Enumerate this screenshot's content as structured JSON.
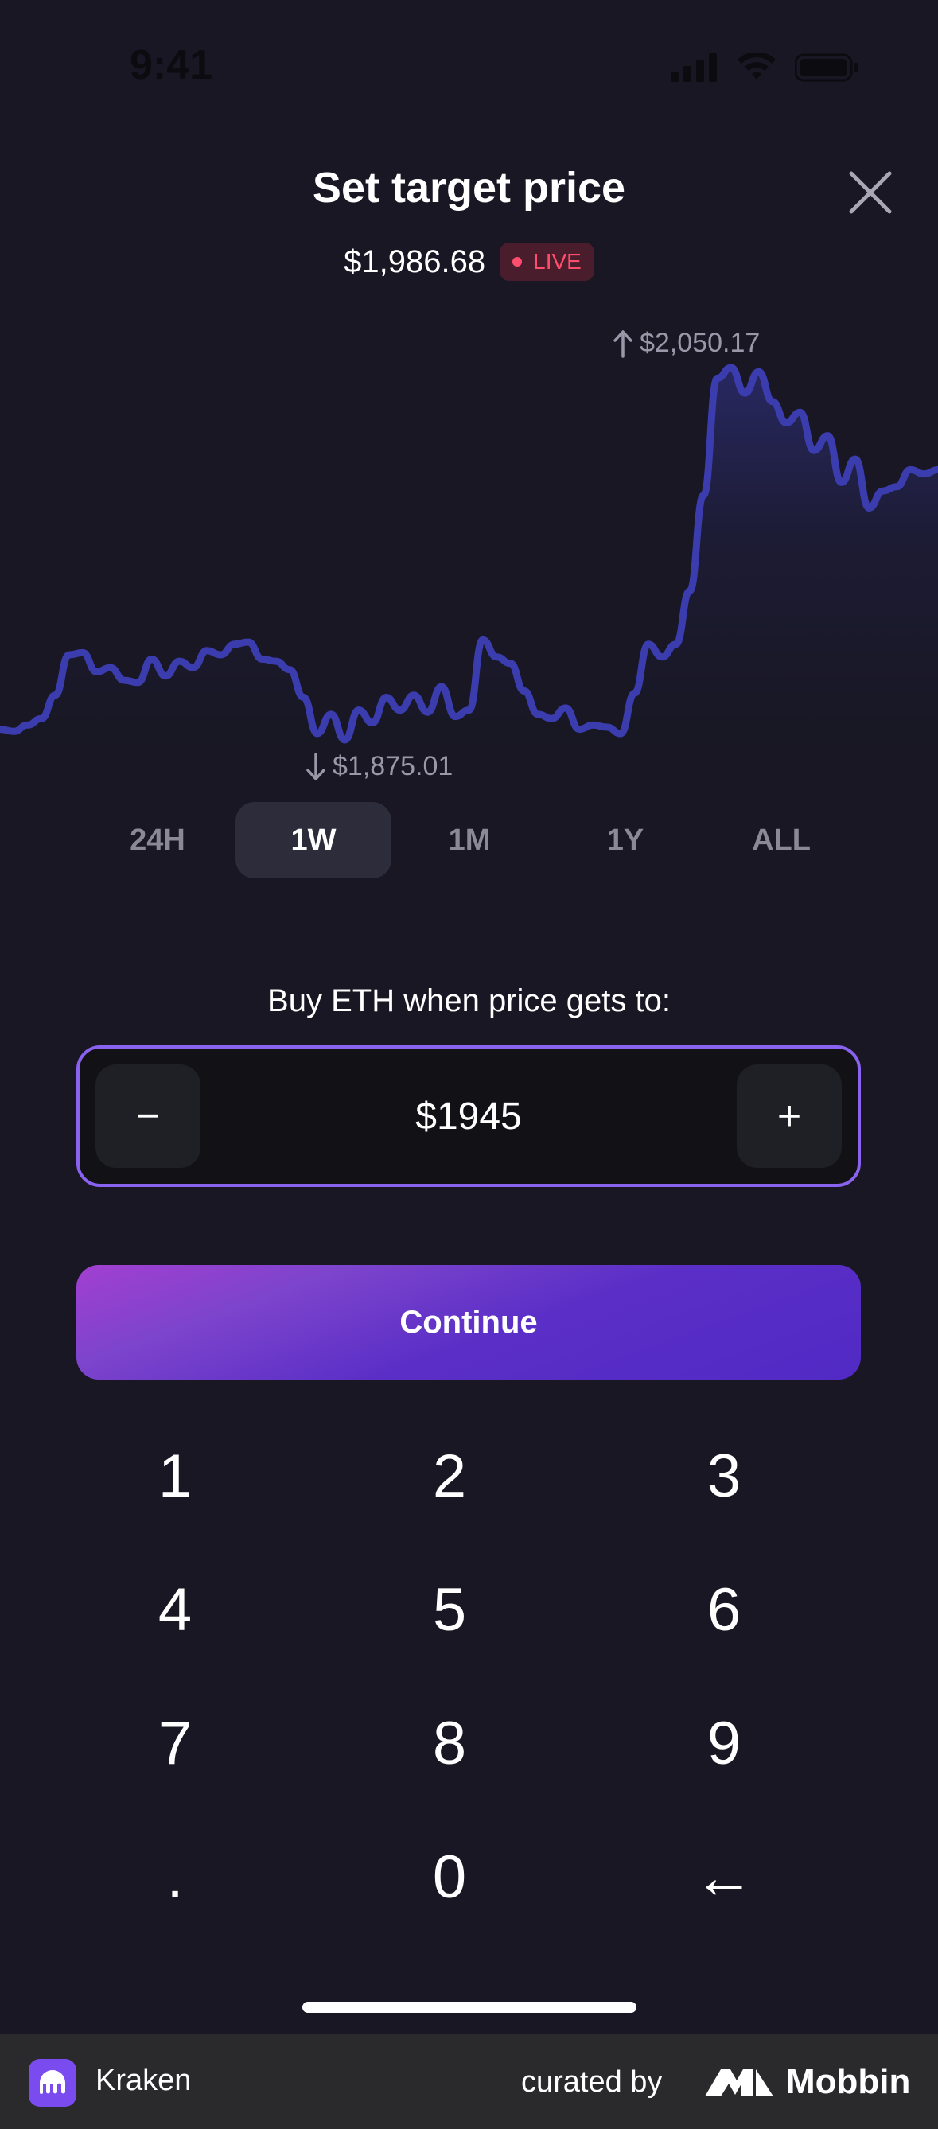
{
  "status_bar": {
    "time": "9:41"
  },
  "header": {
    "title": "Set target price",
    "close_icon": "close-icon"
  },
  "price": {
    "current": "$1,986.68",
    "live_label": "LIVE"
  },
  "chart_data": {
    "type": "line",
    "high_label": "$2,050.17",
    "low_label": "$1,875.01",
    "series": [
      {
        "values": [
          1880,
          1879,
          1882,
          1885,
          1896,
          1915,
          1916,
          1907,
          1909,
          1903,
          1902,
          1913,
          1905,
          1912,
          1909,
          1917,
          1915,
          1920,
          1921,
          1913,
          1912,
          1908,
          1895,
          1878,
          1887,
          1875,
          1889,
          1883,
          1895,
          1889,
          1896,
          1888,
          1900,
          1886,
          1889,
          1922,
          1914,
          1911,
          1898,
          1887,
          1885,
          1890,
          1880,
          1882,
          1881,
          1878,
          1897,
          1920,
          1914,
          1920,
          1945,
          1990,
          2045,
          2050,
          2038,
          2048,
          2034,
          2024,
          2029,
          2011,
          2018,
          1996,
          2007,
          1984,
          1992,
          1994,
          2002,
          2000,
          2002
        ]
      }
    ],
    "line_color": "#3b3cae",
    "ranges": [
      "24H",
      "1W",
      "1M",
      "1Y",
      "ALL"
    ],
    "active_range": "1W"
  },
  "order": {
    "label": "Buy ETH when price gets to:",
    "value": "$1945",
    "minus_label": "−",
    "plus_label": "+"
  },
  "continue_label": "Continue",
  "keypad": [
    "1",
    "2",
    "3",
    "4",
    "5",
    "6",
    "7",
    "8",
    "9",
    ".",
    "0",
    "←"
  ],
  "footer": {
    "app_name": "Kraken",
    "curated_by": "curated by",
    "brand": "Mobbin"
  }
}
